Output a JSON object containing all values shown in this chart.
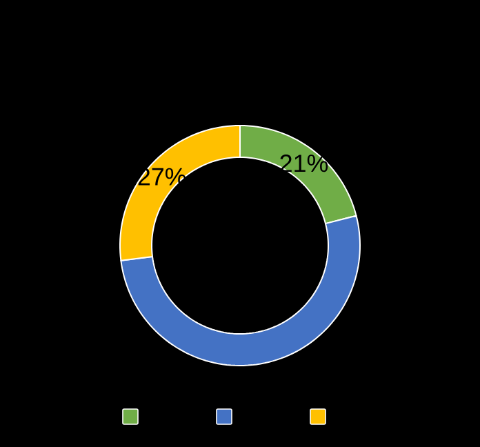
{
  "chart_data": {
    "type": "donut",
    "categories": [
      null,
      null,
      null
    ],
    "values": [
      21,
      52,
      27
    ],
    "colors": [
      "#70ad47",
      "#4472c4",
      "#ffc000"
    ],
    "value_labels": [
      "21%",
      null,
      "27%"
    ]
  }
}
